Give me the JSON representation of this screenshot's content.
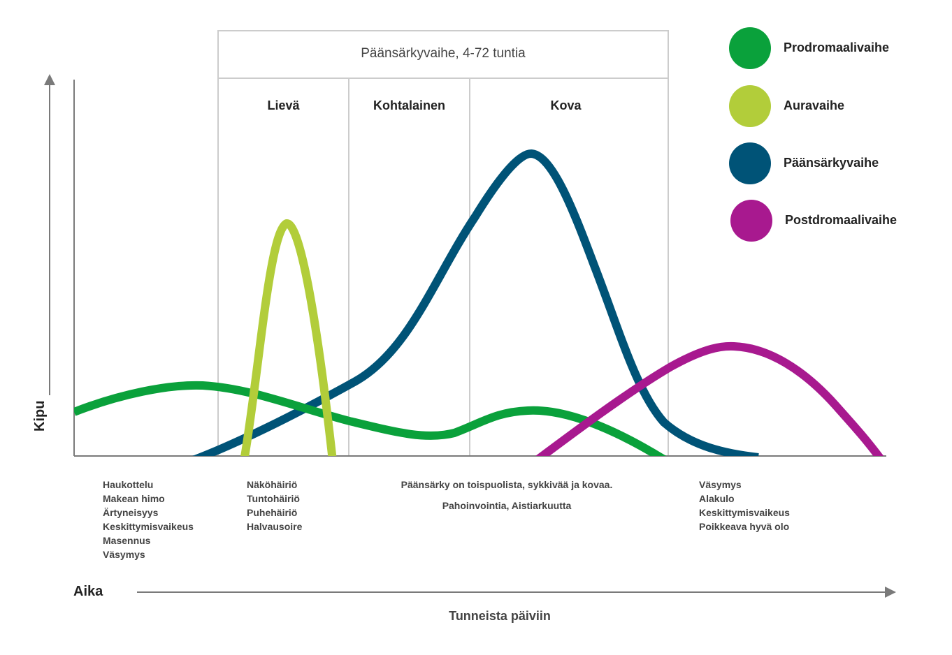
{
  "header": {
    "phase_title": "Päänsärkyvaihe, 4-72 tuntia",
    "severity": [
      "Lievä",
      "Kohtalainen",
      "Kova"
    ]
  },
  "legend": [
    {
      "label": "Prodromaalivaihe",
      "color": "#0aa13b"
    },
    {
      "label": "Auravaihe",
      "color": "#b2cd3a"
    },
    {
      "label": "Päänsärkyvaihe",
      "color": "#005377"
    },
    {
      "label": "Postdromaalivaihe",
      "color": "#a8198f"
    }
  ],
  "axes": {
    "y_label": "Kipu",
    "x_label": "Aika",
    "x_caption": "Tunneista päiviin"
  },
  "symptoms": {
    "prodrome": [
      "Haukottelu",
      "Makean himo",
      "Ärtyneisyys",
      "Keskittymisvaikeus",
      "Masennus",
      "Väsymys"
    ],
    "aura": [
      "Näköhäiriö",
      "Tuntohäiriö",
      "Puhehäiriö",
      "Halvausoire"
    ],
    "headache": [
      "Päänsärky on toispuolista, sykkivää ja kovaa.",
      "Pahoinvointia, Aistiarkuutta"
    ],
    "postdrome": [
      "Väsymys",
      "Alakulo",
      "Keskittymisvaikeus",
      "Poikkeava hyvä olo"
    ]
  },
  "colors": {
    "axis": "#7a7a7a",
    "box_border": "#cccccc"
  }
}
